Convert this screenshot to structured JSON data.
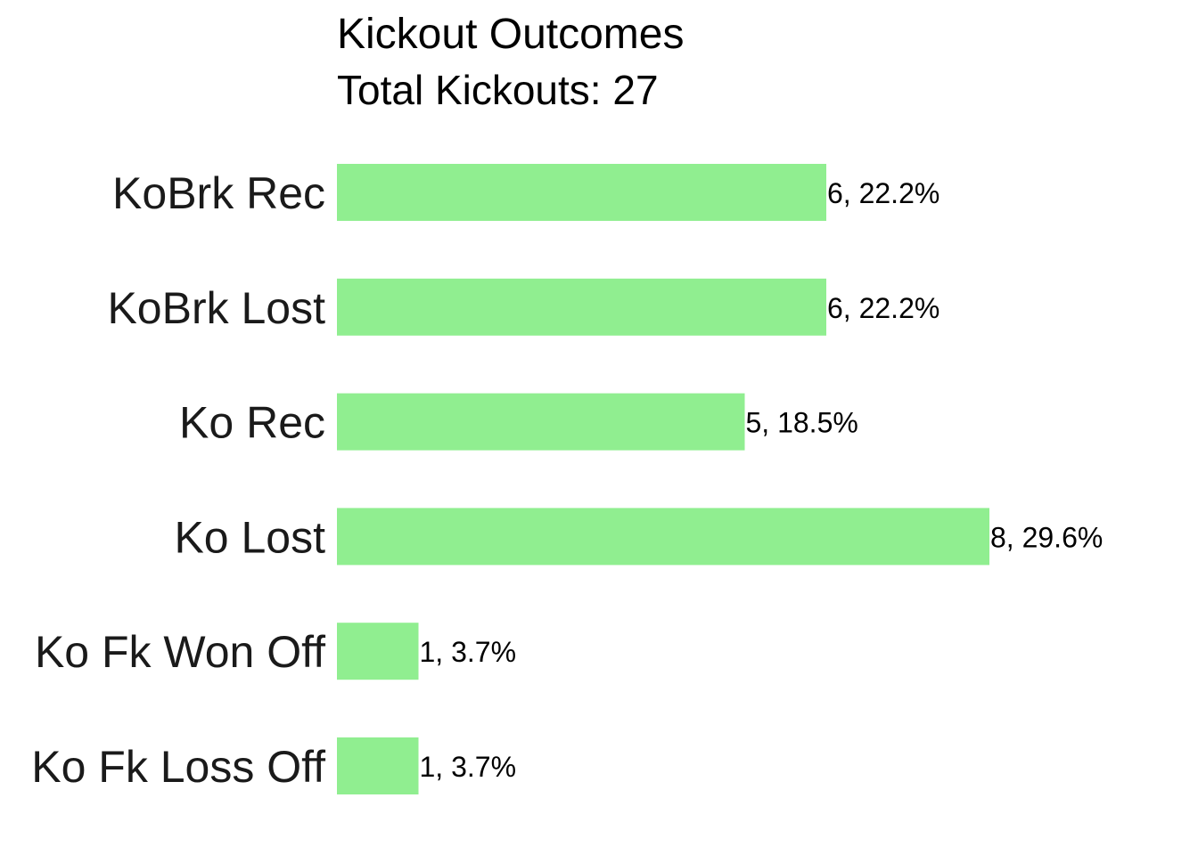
{
  "chart_data": {
    "type": "bar",
    "orientation": "horizontal",
    "title": "Kickout Outcomes",
    "subtitle": "Total Kickouts: 27",
    "xlabel": "",
    "ylabel": "",
    "categories": [
      "KoBrk Rec",
      "KoBrk Lost",
      "Ko Rec",
      "Ko Lost",
      "Ko Fk Won Off",
      "Ko Fk Loss Off"
    ],
    "values": [
      6,
      6,
      5,
      8,
      1,
      1
    ],
    "data_labels": [
      "6, 22.2%",
      "6, 22.2%",
      "5, 18.5%",
      "8, 29.6%",
      "1, 3.7%",
      "1, 3.7%"
    ],
    "xlim": [
      0,
      8
    ],
    "grid": false,
    "legend": "none",
    "bar_color": "#90EE90"
  }
}
